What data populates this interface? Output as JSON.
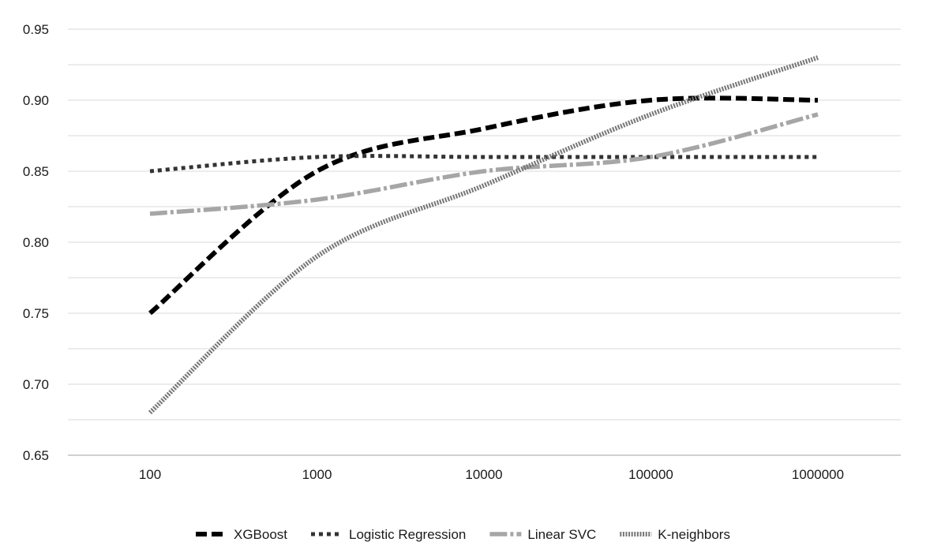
{
  "chart_data": {
    "type": "line",
    "title": "",
    "xlabel": "",
    "ylabel": "",
    "x_scale": "log",
    "categories": [
      "100",
      "1000",
      "10000",
      "100000",
      "1000000"
    ],
    "x": [
      100,
      1000,
      10000,
      100000,
      1000000
    ],
    "ylim": [
      0.65,
      0.95
    ],
    "yticks": [
      "0.65",
      "0.70",
      "0.75",
      "0.80",
      "0.85",
      "0.90",
      "0.95"
    ],
    "grid": "horizontal",
    "legend_position": "bottom",
    "series": [
      {
        "name": "XGBoost",
        "values": [
          0.75,
          0.85,
          0.88,
          0.9,
          0.9
        ],
        "color": "#000000",
        "style": "dashed"
      },
      {
        "name": "Logistic Regression",
        "values": [
          0.85,
          0.86,
          0.86,
          0.86,
          0.86
        ],
        "color": "#333333",
        "style": "dotted"
      },
      {
        "name": "Linear SVC",
        "values": [
          0.82,
          0.83,
          0.85,
          0.86,
          0.89
        ],
        "color": "#a6a6a6",
        "style": "dash-dot"
      },
      {
        "name": "K-neighbors",
        "values": [
          0.68,
          0.79,
          0.84,
          0.89,
          0.93
        ],
        "color": "#767676",
        "style": "fine-dotted"
      }
    ]
  }
}
